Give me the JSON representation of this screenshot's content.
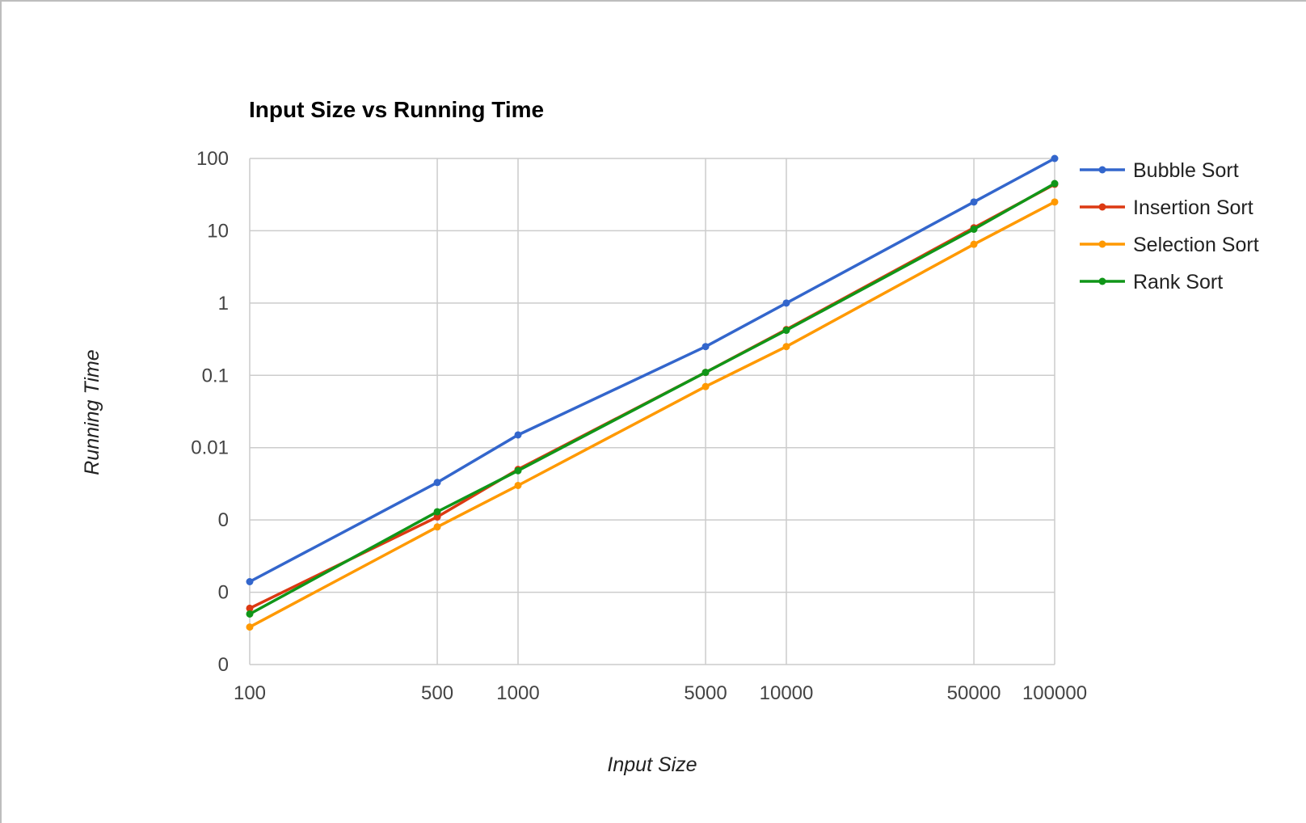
{
  "chart_data": {
    "type": "line",
    "title": "Input Size vs Running Time",
    "xlabel": "Input Size",
    "ylabel": "Running Time",
    "x_scale": "log",
    "y_scale": "log",
    "x": [
      100,
      500,
      1000,
      5000,
      10000,
      50000,
      100000
    ],
    "x_tick_labels": [
      "100",
      "500",
      "1000",
      "5000",
      "10000",
      "50000",
      "100000"
    ],
    "y_ticks": [
      1e-05,
      0.0001,
      0.001,
      0.01,
      0.1,
      1,
      10,
      100
    ],
    "y_tick_labels": [
      "0",
      "0",
      "0",
      "0.01",
      "0.1",
      "1",
      "10",
      "100"
    ],
    "ylim": [
      1e-05,
      100
    ],
    "grid": true,
    "legend_position": "right",
    "series": [
      {
        "name": "Bubble Sort",
        "color": "#3366cc",
        "values": [
          0.00014,
          0.0033,
          0.015,
          0.25,
          1.0,
          25,
          100
        ]
      },
      {
        "name": "Insertion Sort",
        "color": "#dc3912",
        "values": [
          6e-05,
          0.0011,
          0.005,
          0.11,
          0.43,
          11,
          44
        ]
      },
      {
        "name": "Selection Sort",
        "color": "#ff9900",
        "values": [
          3.3e-05,
          0.0008,
          0.003,
          0.07,
          0.25,
          6.5,
          25
        ]
      },
      {
        "name": "Rank Sort",
        "color": "#109618",
        "values": [
          5e-05,
          0.0013,
          0.0048,
          0.11,
          0.42,
          10.5,
          45
        ]
      }
    ]
  }
}
